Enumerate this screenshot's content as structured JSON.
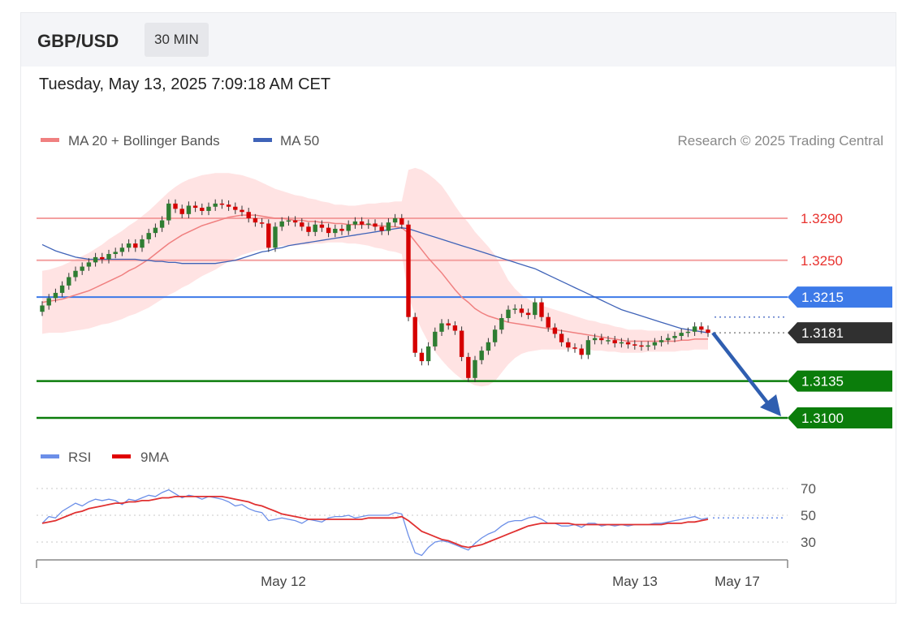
{
  "header": {
    "pair": "GBP/USD",
    "timeframe": "30 MIN"
  },
  "date": "Tuesday, May 13, 2025 7:09:18 AM CET",
  "legend": {
    "ma20": "MA 20 + Bollinger Bands",
    "ma50": "MA 50",
    "credit": "Research © 2025 Trading Central"
  },
  "rsi_legend": {
    "rsi": "RSI",
    "ma9": "9MA"
  },
  "colors": {
    "bull": "#2e7d32",
    "bear": "#d50000",
    "ma20": "#f08080",
    "ma50": "#3f63b8",
    "band": "#ffe0e0",
    "blue_level": "#3d7ae8",
    "green_level": "#0b7d0b",
    "current": "#303030"
  },
  "chart_data": [
    {
      "type": "candlestick",
      "series": [
        {
          "name": "GBP/USD",
          "close": [
            1.3207,
            1.3214,
            1.3219,
            1.3226,
            1.3234,
            1.324,
            1.3244,
            1.3248,
            1.3253,
            1.3251,
            1.3256,
            1.3258,
            1.3262,
            1.3266,
            1.3262,
            1.327,
            1.3276,
            1.3281,
            1.3288,
            1.3304,
            1.3299,
            1.3294,
            1.3302,
            1.33,
            1.3297,
            1.3301,
            1.3304,
            1.3303,
            1.3301,
            1.3298,
            1.3296,
            1.329,
            1.3286,
            1.3285,
            1.3262,
            1.3282,
            1.3287,
            1.3288,
            1.3286,
            1.3282,
            1.3277,
            1.3284,
            1.3281,
            1.3276,
            1.328,
            1.3278,
            1.3284,
            1.3287,
            1.3284,
            1.3285,
            1.3282,
            1.3278,
            1.3286,
            1.329,
            1.3284,
            1.3196,
            1.3162,
            1.3154,
            1.3168,
            1.3182,
            1.319,
            1.3188,
            1.3183,
            1.3158,
            1.3138,
            1.3155,
            1.3164,
            1.3172,
            1.3184,
            1.3195,
            1.3203,
            1.3204,
            1.32,
            1.3198,
            1.321,
            1.3196,
            1.3186,
            1.318,
            1.3172,
            1.3167,
            1.3166,
            1.316,
            1.3174,
            1.3176,
            1.3174,
            1.3174,
            1.3171,
            1.3172,
            1.317,
            1.3169,
            1.3168,
            1.3169,
            1.3172,
            1.3174,
            1.3176,
            1.3178,
            1.3181,
            1.3182,
            1.3187,
            1.3184,
            1.3181
          ],
          "ma20": [
            1.321,
            1.3211,
            1.3212,
            1.3213,
            1.3215,
            1.3217,
            1.3219,
            1.3221,
            1.3224,
            1.3227,
            1.323,
            1.3233,
            1.3236,
            1.324,
            1.3243,
            1.3247,
            1.3251,
            1.3256,
            1.3261,
            1.3266,
            1.327,
            1.3274,
            1.3277,
            1.328,
            1.3283,
            1.3285,
            1.3287,
            1.3289,
            1.3291,
            1.3292,
            1.3293,
            1.3293,
            1.3293,
            1.3292,
            1.3291,
            1.329,
            1.329,
            1.3289,
            1.3288,
            1.3288,
            1.3287,
            1.3287,
            1.3286,
            1.3286,
            1.3285,
            1.3285,
            1.3284,
            1.3284,
            1.3284,
            1.3284,
            1.3283,
            1.3283,
            1.3282,
            1.3282,
            1.3281,
            1.3276,
            1.3268,
            1.326,
            1.3252,
            1.3245,
            1.3238,
            1.323,
            1.3222,
            1.3215,
            1.321,
            1.3204,
            1.32,
            1.3197,
            1.3195,
            1.3193,
            1.3191,
            1.319,
            1.3189,
            1.3188,
            1.3187,
            1.3186,
            1.3185,
            1.3184,
            1.3183,
            1.3182,
            1.3181,
            1.318,
            1.3179,
            1.3178,
            1.3177,
            1.3176,
            1.3175,
            1.3174,
            1.3173,
            1.3173,
            1.3173,
            1.3173,
            1.3173,
            1.3173,
            1.3173,
            1.3173,
            1.3174,
            1.3174,
            1.3175,
            1.3175,
            1.3175
          ],
          "ma50": [
            1.3265,
            1.3262,
            1.3259,
            1.3257,
            1.3255,
            1.3253,
            1.3252,
            1.3251,
            1.3251,
            1.3251,
            1.3251,
            1.3251,
            1.3251,
            1.3251,
            1.3251,
            1.325,
            1.325,
            1.3249,
            1.3249,
            1.3248,
            1.3248,
            1.3247,
            1.3247,
            1.3247,
            1.3247,
            1.3247,
            1.3247,
            1.3248,
            1.3249,
            1.325,
            1.3252,
            1.3254,
            1.3256,
            1.3258,
            1.3259,
            1.3261,
            1.3262,
            1.3264,
            1.3265,
            1.3266,
            1.3267,
            1.3268,
            1.3269,
            1.327,
            1.3271,
            1.3272,
            1.3273,
            1.3274,
            1.3275,
            1.3276,
            1.3277,
            1.3278,
            1.3279,
            1.328,
            1.3281,
            1.328,
            1.3278,
            1.3276,
            1.3274,
            1.3272,
            1.327,
            1.3268,
            1.3266,
            1.3264,
            1.3262,
            1.326,
            1.3258,
            1.3256,
            1.3254,
            1.3252,
            1.325,
            1.3248,
            1.3246,
            1.3244,
            1.3242,
            1.3239,
            1.3236,
            1.3233,
            1.323,
            1.3227,
            1.3224,
            1.3221,
            1.3218,
            1.3215,
            1.3212,
            1.3209,
            1.3206,
            1.3203,
            1.3201,
            1.3199,
            1.3197,
            1.3195,
            1.3193,
            1.3191,
            1.3189,
            1.3187,
            1.3185,
            1.3184,
            1.3183,
            1.3182,
            1.3181
          ],
          "band_width": [
            0.003,
            0.003,
            0.0031,
            0.0032,
            0.0033,
            0.0034,
            0.0035,
            0.0036,
            0.0037,
            0.0038,
            0.004,
            0.0041,
            0.0042,
            0.0043,
            0.0044,
            0.0045,
            0.0046,
            0.0047,
            0.0048,
            0.0049,
            0.005,
            0.005,
            0.005,
            0.0049,
            0.0048,
            0.0047,
            0.0046,
            0.0044,
            0.0042,
            0.004,
            0.0038,
            0.0036,
            0.0034,
            0.0032,
            0.003,
            0.0028,
            0.0026,
            0.0025,
            0.0024,
            0.0023,
            0.0022,
            0.0021,
            0.002,
            0.0019,
            0.0018,
            0.0018,
            0.0018,
            0.0018,
            0.0019,
            0.002,
            0.0021,
            0.0022,
            0.0023,
            0.0024,
            0.0025,
            0.006,
            0.007,
            0.0076,
            0.008,
            0.0082,
            0.0083,
            0.0082,
            0.008,
            0.0078,
            0.0076,
            0.0073,
            0.007,
            0.0066,
            0.006,
            0.005,
            0.004,
            0.0033,
            0.0028,
            0.0025,
            0.0023,
            0.0021,
            0.002,
            0.0019,
            0.0018,
            0.0017,
            0.0016,
            0.0015,
            0.0014,
            0.0014,
            0.0013,
            0.0013,
            0.0012,
            0.0012,
            0.0011,
            0.0011,
            0.0011,
            0.001,
            0.001,
            0.001,
            0.001,
            0.001,
            0.001,
            0.001,
            0.001,
            0.001,
            0.001
          ]
        }
      ],
      "levels": [
        {
          "label": "1.3290",
          "value": 1.329,
          "style": "resistance"
        },
        {
          "label": "1.3250",
          "value": 1.325,
          "style": "resistance"
        },
        {
          "label": "1.3215",
          "value": 1.3215,
          "style": "pivot"
        },
        {
          "label": "1.3181",
          "value": 1.3181,
          "style": "current"
        },
        {
          "label": "1.3135",
          "value": 1.3135,
          "style": "support"
        },
        {
          "label": "1.3100",
          "value": 1.31,
          "style": "support"
        }
      ],
      "x_ticks": [
        "May 12",
        "May 13",
        "May 17"
      ],
      "ylim": [
        1.309,
        1.333
      ]
    },
    {
      "type": "line",
      "title": "RSI",
      "series": [
        {
          "name": "RSI",
          "values": [
            44,
            49,
            48,
            53,
            56,
            59,
            57,
            60,
            62,
            61,
            62,
            61,
            58,
            62,
            61,
            63,
            65,
            64,
            67,
            69,
            66,
            63,
            65,
            64,
            62,
            64,
            63,
            62,
            60,
            57,
            58,
            55,
            53,
            52,
            46,
            47,
            48,
            47,
            46,
            44,
            47,
            46,
            45,
            48,
            49,
            49,
            50,
            48,
            49,
            50,
            50,
            50,
            50,
            52,
            51,
            35,
            22,
            20,
            26,
            30,
            31,
            30,
            28,
            26,
            24,
            29,
            33,
            36,
            38,
            42,
            45,
            46,
            46,
            48,
            49,
            47,
            44,
            44,
            42,
            42,
            43,
            41,
            44,
            44,
            42,
            43,
            42,
            43,
            42,
            43,
            43,
            43,
            44,
            44,
            45,
            46,
            47,
            48,
            49,
            47,
            48
          ]
        },
        {
          "name": "9MA",
          "values": [
            44,
            45,
            46,
            48,
            50,
            52,
            53,
            55,
            56,
            57,
            58,
            59,
            59,
            60,
            60,
            61,
            61,
            62,
            63,
            63,
            64,
            64,
            64,
            64,
            64,
            64,
            64,
            64,
            63,
            62,
            61,
            60,
            58,
            57,
            55,
            53,
            51,
            50,
            49,
            48,
            47,
            47,
            47,
            47,
            47,
            47,
            47,
            47,
            47,
            48,
            48,
            48,
            48,
            48,
            49,
            46,
            42,
            38,
            36,
            34,
            32,
            31,
            29,
            27,
            26,
            27,
            28,
            30,
            32,
            34,
            36,
            38,
            40,
            42,
            43,
            44,
            44,
            44,
            44,
            44,
            43,
            43,
            43,
            43,
            43,
            43,
            43,
            43,
            43,
            43,
            43,
            43,
            43,
            43,
            44,
            44,
            44,
            45,
            45,
            46,
            47
          ]
        }
      ],
      "y_ticks": [
        70,
        50,
        30
      ],
      "ylim": [
        20,
        80
      ]
    }
  ]
}
